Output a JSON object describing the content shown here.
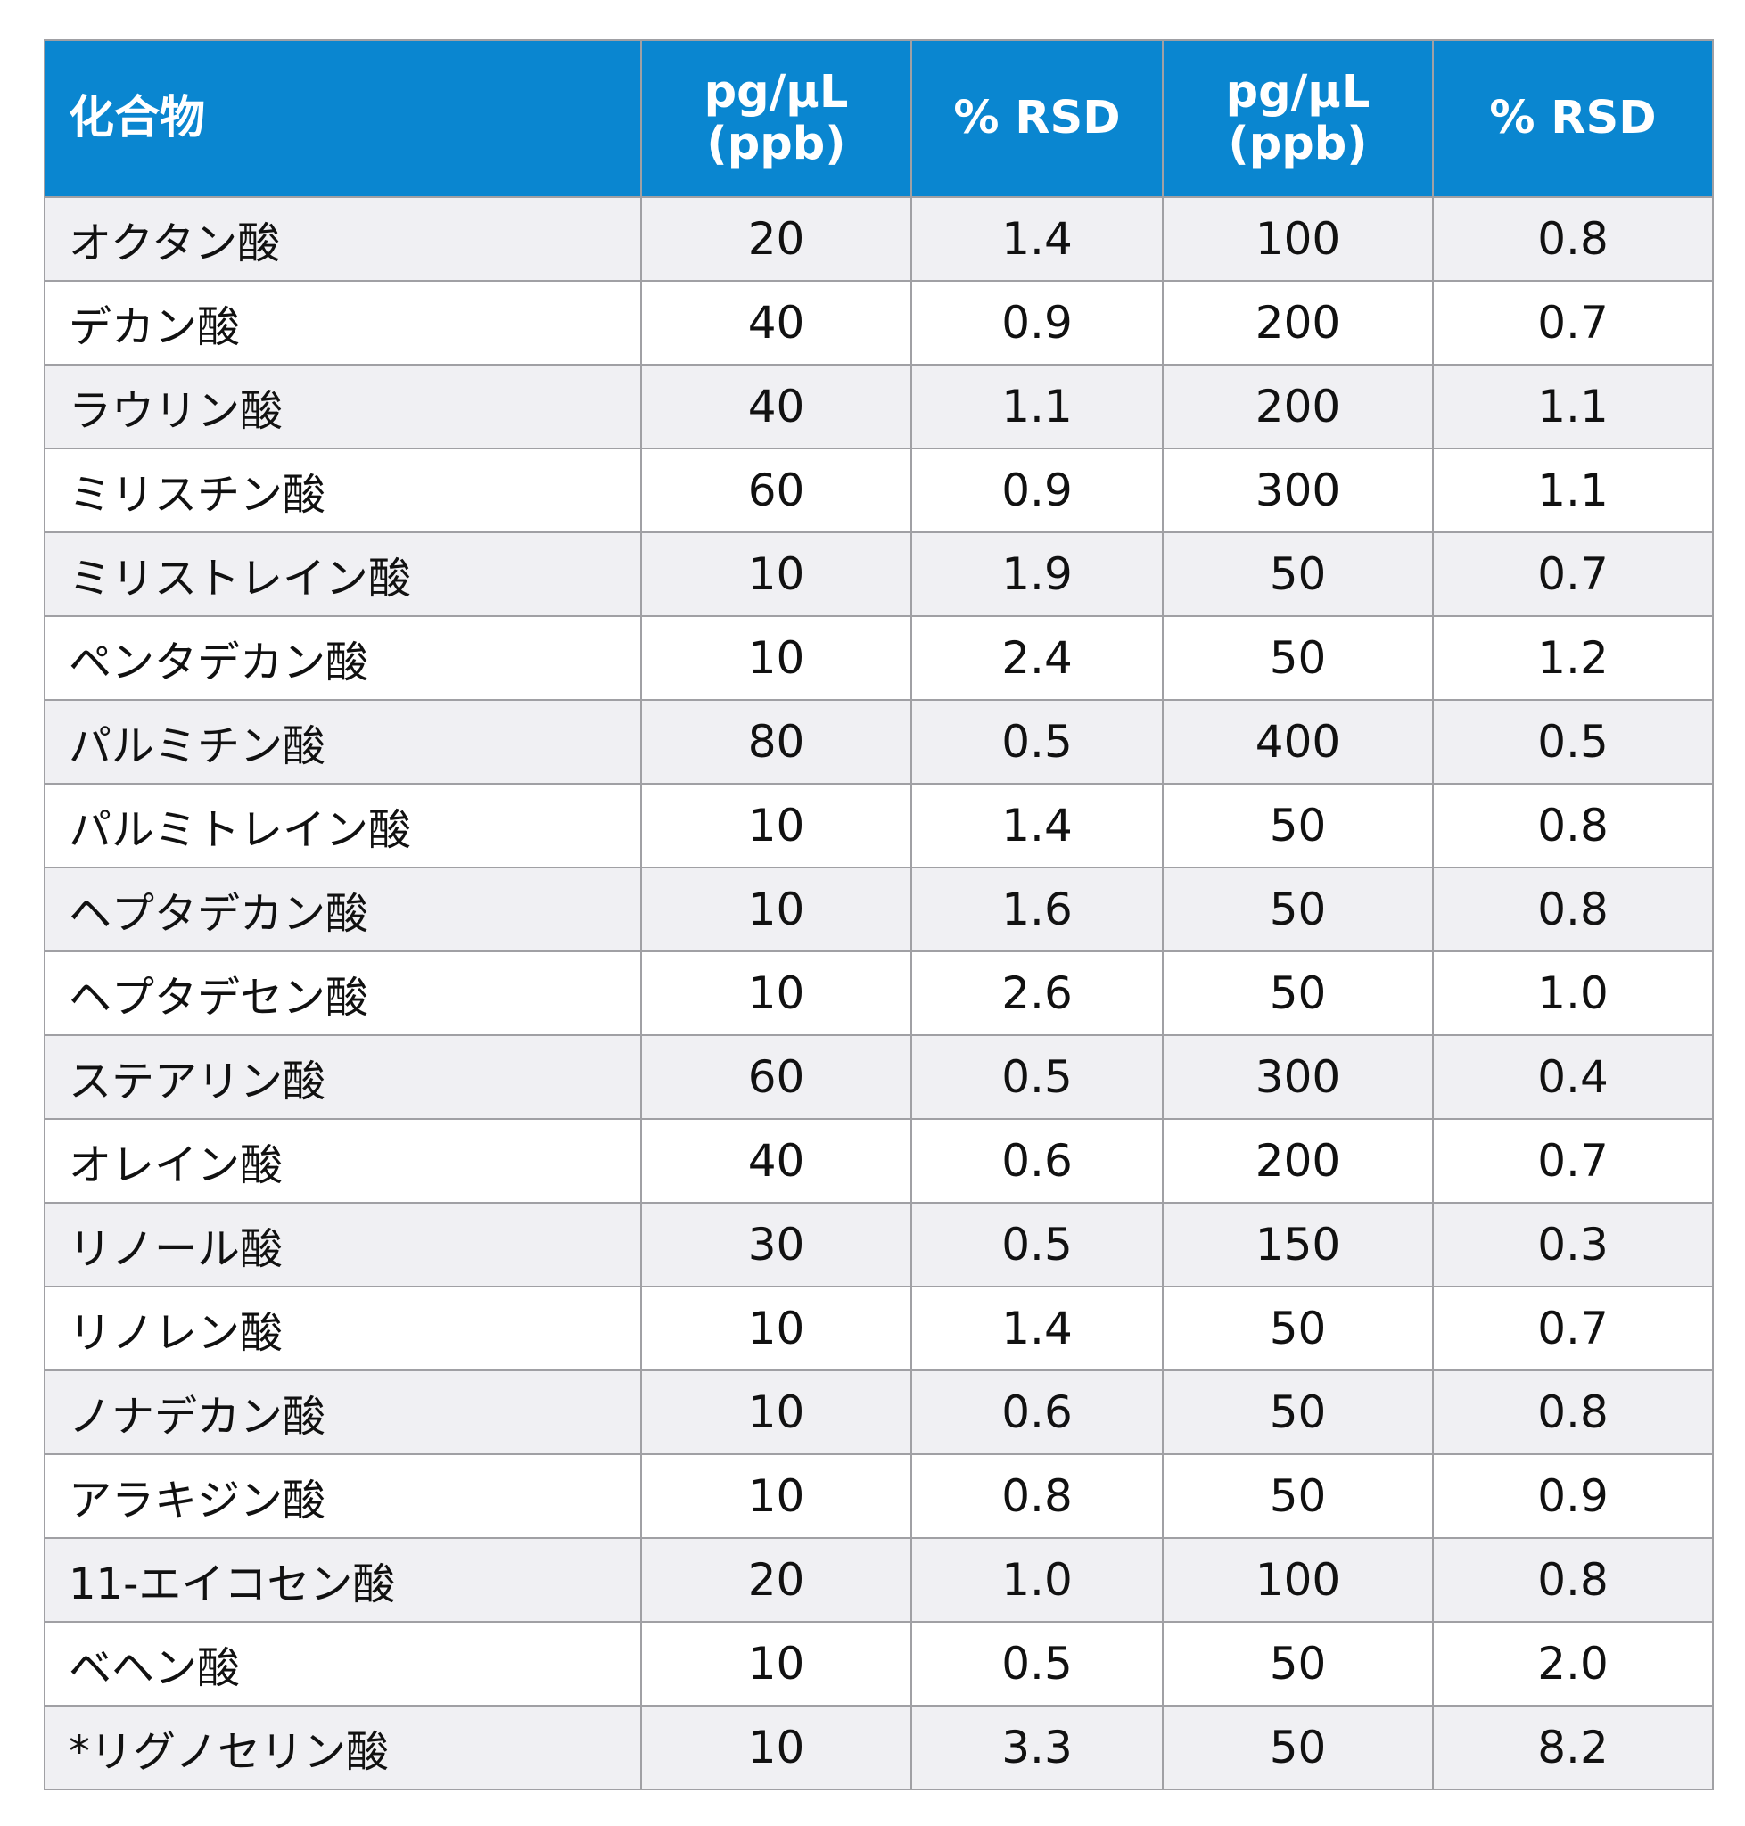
{
  "table": {
    "headers": [
      {
        "lines": [
          "化合物"
        ]
      },
      {
        "lines": [
          "pg/µL",
          "(ppb)"
        ]
      },
      {
        "lines": [
          "% RSD"
        ]
      },
      {
        "lines": [
          "pg/µL",
          "(ppb)"
        ]
      },
      {
        "lines": [
          "% RSD"
        ]
      }
    ],
    "rows": [
      [
        "オクタン酸",
        "20",
        "1.4",
        "100",
        "0.8"
      ],
      [
        "デカン酸",
        "40",
        "0.9",
        "200",
        "0.7"
      ],
      [
        "ラウリン酸",
        "40",
        "1.1",
        "200",
        "1.1"
      ],
      [
        "ミリスチン酸",
        "60",
        "0.9",
        "300",
        "1.1"
      ],
      [
        "ミリストレイン酸",
        "10",
        "1.9",
        "50",
        "0.7"
      ],
      [
        "ペンタデカン酸",
        "10",
        "2.4",
        "50",
        "1.2"
      ],
      [
        "パルミチン酸",
        "80",
        "0.5",
        "400",
        "0.5"
      ],
      [
        "パルミトレイン酸",
        "10",
        "1.4",
        "50",
        "0.8"
      ],
      [
        "ヘプタデカン酸",
        "10",
        "1.6",
        "50",
        "0.8"
      ],
      [
        "ヘプタデセン酸",
        "10",
        "2.6",
        "50",
        "1.0"
      ],
      [
        "ステアリン酸",
        "60",
        "0.5",
        "300",
        "0.4"
      ],
      [
        "オレイン酸",
        "40",
        "0.6",
        "200",
        "0.7"
      ],
      [
        "リノール酸",
        "30",
        "0.5",
        "150",
        "0.3"
      ],
      [
        "リノレン酸",
        "10",
        "1.4",
        "50",
        "0.7"
      ],
      [
        "ノナデカン酸",
        "10",
        "0.6",
        "50",
        "0.8"
      ],
      [
        "アラキジン酸",
        "10",
        "0.8",
        "50",
        "0.9"
      ],
      [
        "11-エイコセン酸",
        "20",
        "1.0",
        "100",
        "0.8"
      ],
      [
        "ベヘン酸",
        "10",
        "0.5",
        "50",
        "2.0"
      ],
      [
        "*リグノセリン酸",
        "10",
        "3.3",
        "50",
        "8.2"
      ]
    ]
  },
  "colors": {
    "header_bg": "#0a86d0",
    "header_text": "#ffffff",
    "row_alt_bg": "#f0f0f3",
    "border": "#a0a0a4"
  }
}
